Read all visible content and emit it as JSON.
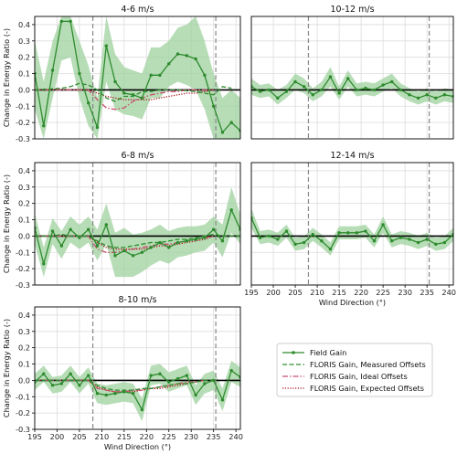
{
  "chart_data": {
    "type": "line",
    "ylabel": "Change in Energy Ratio (-)",
    "xlabel": "Wind Direction (°)",
    "xlim": [
      195,
      241
    ],
    "ylim": [
      -0.3,
      0.45
    ],
    "xticks": [
      "195",
      "200",
      "205",
      "210",
      "215",
      "220",
      "225",
      "230",
      "235",
      "240"
    ],
    "yticks": [
      "0.4",
      "0.3",
      "0.2",
      "0.1",
      "0.0",
      "-0.1",
      "-0.2",
      "-0.3"
    ],
    "vlines": [
      208,
      235.5
    ],
    "legend": {
      "placement": "lower-right",
      "entries": [
        {
          "key": "field",
          "label": "Field Gain"
        },
        {
          "key": "measured",
          "label": "FLORIS Gain, Measured Offsets"
        },
        {
          "key": "ideal",
          "label": "FLORIS Gain, Ideal Offsets"
        },
        {
          "key": "expected",
          "label": "FLORIS Gain, Expected Offsets"
        }
      ]
    },
    "colors": {
      "field": "#2e8b2e",
      "band": "#9fd19f",
      "measured": "#2e8b2e",
      "ideal": "#c8506e",
      "expected": "#a8121e",
      "zero": "#000000",
      "vline": "#888888",
      "grid": "#dddddd"
    },
    "panels": [
      {
        "title": "4-6 m/s",
        "x": [
          195,
          197,
          199,
          201,
          203,
          205,
          207,
          209,
          211,
          213,
          215,
          217,
          219,
          221,
          223,
          225,
          227,
          229,
          231,
          233,
          235,
          237,
          239,
          241
        ],
        "field": [
          0.1,
          -0.22,
          0.12,
          0.42,
          0.42,
          0.1,
          -0.08,
          -0.23,
          0.27,
          0.05,
          -0.02,
          -0.03,
          -0.05,
          0.09,
          0.09,
          0.16,
          0.22,
          0.21,
          0.19,
          0.09,
          -0.1,
          -0.26,
          -0.2,
          -0.25
        ],
        "lower": [
          -0.12,
          -0.3,
          -0.05,
          0.18,
          0.2,
          -0.05,
          -0.22,
          -0.3,
          0.05,
          -0.12,
          -0.15,
          -0.16,
          -0.18,
          -0.05,
          -0.05,
          0.02,
          0.05,
          0.03,
          0.0,
          -0.12,
          -0.3,
          -0.3,
          -0.3,
          -0.3
        ],
        "upper": [
          0.3,
          0.05,
          0.3,
          0.45,
          0.45,
          0.3,
          0.15,
          -0.05,
          0.45,
          0.22,
          0.14,
          0.12,
          0.1,
          0.26,
          0.26,
          0.3,
          0.38,
          0.4,
          0.45,
          0.3,
          0.1,
          -0.05,
          0.0,
          -0.05
        ],
        "measured": [
          [
            195,
            0.0
          ],
          [
            201,
            0.01
          ],
          [
            203,
            0.02
          ],
          [
            205,
            0.04
          ],
          [
            207,
            0.03
          ],
          [
            209,
            0.0
          ],
          [
            211,
            -0.05
          ],
          [
            213,
            -0.07
          ],
          [
            215,
            -0.04
          ],
          [
            217,
            -0.04
          ],
          [
            219,
            -0.01
          ],
          [
            221,
            -0.01
          ],
          [
            223,
            0.0
          ],
          [
            227,
            0.0
          ],
          [
            231,
            -0.01
          ],
          [
            233,
            -0.02
          ],
          [
            235,
            -0.03
          ],
          [
            237,
            0.02
          ],
          [
            239,
            0.01
          ]
        ],
        "ideal": [
          [
            195,
            0.0
          ],
          [
            207,
            0.0
          ],
          [
            209,
            -0.06
          ],
          [
            211,
            -0.11
          ],
          [
            213,
            -0.12
          ],
          [
            215,
            -0.11
          ],
          [
            217,
            -0.07
          ],
          [
            219,
            -0.05
          ],
          [
            221,
            -0.03
          ],
          [
            223,
            -0.02
          ],
          [
            225,
            -0.01
          ],
          [
            227,
            -0.01
          ],
          [
            229,
            0.0
          ],
          [
            235,
            0.0
          ]
        ],
        "expected": [
          [
            195,
            0.0
          ],
          [
            207,
            0.0
          ],
          [
            209,
            -0.02
          ],
          [
            211,
            -0.04
          ],
          [
            213,
            -0.05
          ],
          [
            215,
            -0.06
          ],
          [
            217,
            -0.06
          ],
          [
            219,
            -0.06
          ],
          [
            221,
            -0.06
          ],
          [
            223,
            -0.05
          ],
          [
            225,
            -0.04
          ],
          [
            227,
            -0.03
          ],
          [
            229,
            -0.02
          ],
          [
            231,
            -0.02
          ],
          [
            233,
            -0.01
          ],
          [
            235,
            0.0
          ]
        ]
      },
      {
        "title": "10-12 m/s",
        "x": [
          195,
          197,
          199,
          201,
          203,
          205,
          207,
          209,
          211,
          213,
          215,
          217,
          219,
          221,
          223,
          225,
          227,
          229,
          231,
          233,
          235,
          237,
          239,
          241
        ],
        "field": [
          0.02,
          -0.01,
          0.0,
          -0.05,
          -0.01,
          0.05,
          0.02,
          -0.03,
          0.0,
          0.08,
          -0.02,
          0.07,
          0.0,
          0.01,
          0.0,
          0.03,
          0.05,
          0.0,
          -0.03,
          -0.05,
          -0.03,
          -0.05,
          -0.03,
          -0.04
        ],
        "lower": [
          -0.03,
          -0.05,
          -0.04,
          -0.09,
          -0.05,
          0.0,
          -0.02,
          -0.07,
          -0.04,
          0.02,
          -0.06,
          0.02,
          -0.04,
          -0.03,
          -0.04,
          -0.01,
          0.01,
          -0.04,
          -0.07,
          -0.09,
          -0.07,
          -0.09,
          -0.07,
          -0.08
        ],
        "upper": [
          0.07,
          0.03,
          0.04,
          0.0,
          0.03,
          0.1,
          0.07,
          0.01,
          0.05,
          0.14,
          0.02,
          0.12,
          0.04,
          0.05,
          0.04,
          0.07,
          0.1,
          0.04,
          0.01,
          -0.01,
          0.01,
          -0.01,
          0.01,
          0.0
        ],
        "measured": [],
        "ideal": [],
        "expected": []
      },
      {
        "title": "6-8 m/s",
        "x": [
          195,
          197,
          199,
          201,
          203,
          205,
          207,
          209,
          211,
          213,
          215,
          217,
          219,
          221,
          223,
          225,
          227,
          229,
          231,
          233,
          235,
          237,
          239,
          241
        ],
        "field": [
          0.05,
          -0.17,
          0.03,
          -0.06,
          0.04,
          -0.01,
          0.04,
          -0.06,
          0.07,
          -0.12,
          -0.09,
          -0.12,
          -0.1,
          -0.07,
          -0.04,
          -0.07,
          -0.04,
          -0.03,
          -0.02,
          -0.01,
          0.04,
          -0.03,
          0.16,
          0.04
        ],
        "lower": [
          -0.05,
          -0.25,
          -0.05,
          -0.14,
          -0.04,
          -0.08,
          -0.04,
          -0.15,
          -0.05,
          -0.25,
          -0.25,
          -0.25,
          -0.22,
          -0.18,
          -0.15,
          -0.17,
          -0.13,
          -0.12,
          -0.1,
          -0.09,
          -0.04,
          -0.13,
          0.02,
          -0.05
        ],
        "upper": [
          0.14,
          -0.07,
          0.11,
          0.03,
          0.12,
          0.07,
          0.12,
          0.04,
          0.2,
          0.02,
          0.05,
          0.01,
          0.02,
          0.04,
          0.07,
          0.03,
          0.05,
          0.06,
          0.06,
          0.07,
          0.12,
          0.07,
          0.3,
          0.13
        ],
        "measured": [
          [
            195,
            0.0
          ],
          [
            199,
            0.0
          ],
          [
            201,
            0.01
          ],
          [
            203,
            0.0
          ],
          [
            205,
            0.0
          ],
          [
            207,
            0.0
          ],
          [
            209,
            -0.03
          ],
          [
            211,
            -0.06
          ],
          [
            213,
            -0.07
          ],
          [
            215,
            -0.07
          ],
          [
            217,
            -0.06
          ],
          [
            219,
            -0.05
          ],
          [
            221,
            -0.04
          ],
          [
            223,
            -0.04
          ],
          [
            225,
            -0.03
          ],
          [
            227,
            -0.02
          ],
          [
            229,
            -0.02
          ],
          [
            231,
            -0.01
          ],
          [
            233,
            0.0
          ],
          [
            235,
            0.01
          ],
          [
            237,
            0.0
          ],
          [
            239,
            0.0
          ],
          [
            241,
            0.0
          ]
        ],
        "ideal": [
          [
            195,
            0.0
          ],
          [
            207,
            0.0
          ],
          [
            209,
            -0.08
          ],
          [
            211,
            -0.1
          ],
          [
            213,
            -0.1
          ],
          [
            215,
            -0.09
          ],
          [
            217,
            -0.08
          ],
          [
            219,
            -0.07
          ],
          [
            221,
            -0.06
          ],
          [
            223,
            -0.05
          ],
          [
            225,
            -0.05
          ],
          [
            227,
            -0.04
          ],
          [
            229,
            -0.03
          ],
          [
            231,
            -0.02
          ],
          [
            233,
            -0.01
          ],
          [
            235,
            0.0
          ]
        ],
        "expected": [
          [
            195,
            0.0
          ],
          [
            207,
            0.0
          ],
          [
            209,
            -0.04
          ],
          [
            211,
            -0.07
          ],
          [
            213,
            -0.08
          ],
          [
            215,
            -0.08
          ],
          [
            217,
            -0.08
          ],
          [
            219,
            -0.08
          ],
          [
            221,
            -0.07
          ],
          [
            223,
            -0.06
          ],
          [
            225,
            -0.06
          ],
          [
            227,
            -0.05
          ],
          [
            229,
            -0.04
          ],
          [
            231,
            -0.03
          ],
          [
            233,
            -0.02
          ],
          [
            235,
            0.0
          ]
        ]
      },
      {
        "title": "12-14 m/s",
        "x": [
          195,
          197,
          199,
          201,
          203,
          205,
          207,
          209,
          211,
          213,
          215,
          217,
          219,
          221,
          223,
          225,
          227,
          229,
          231,
          233,
          235,
          237,
          239,
          241
        ],
        "field": [
          0.11,
          -0.01,
          0.0,
          -0.02,
          0.03,
          -0.05,
          -0.04,
          0.01,
          -0.03,
          -0.08,
          0.02,
          0.02,
          0.02,
          0.03,
          -0.03,
          0.07,
          -0.03,
          -0.01,
          -0.02,
          -0.04,
          -0.02,
          -0.05,
          -0.04,
          0.01
        ],
        "lower": [
          0.05,
          -0.05,
          -0.04,
          -0.06,
          -0.01,
          -0.09,
          -0.08,
          -0.03,
          -0.07,
          -0.12,
          -0.02,
          -0.02,
          -0.02,
          -0.01,
          -0.07,
          0.02,
          -0.07,
          -0.05,
          -0.06,
          -0.08,
          -0.06,
          -0.09,
          -0.08,
          -0.03
        ],
        "upper": [
          0.17,
          0.03,
          0.04,
          0.02,
          0.07,
          -0.01,
          0.0,
          0.05,
          0.01,
          -0.04,
          0.06,
          0.06,
          0.06,
          0.07,
          0.01,
          0.12,
          0.01,
          0.03,
          0.02,
          0.0,
          0.02,
          -0.01,
          0.0,
          0.05
        ],
        "measured": [],
        "ideal": [],
        "expected": []
      },
      {
        "title": "8-10 m/s",
        "x": [
          195,
          197,
          199,
          201,
          203,
          205,
          207,
          209,
          211,
          213,
          215,
          217,
          219,
          221,
          223,
          225,
          227,
          229,
          231,
          233,
          235,
          237,
          239,
          241
        ],
        "field": [
          -0.01,
          0.04,
          -0.03,
          -0.02,
          0.04,
          -0.03,
          0.03,
          -0.08,
          -0.09,
          -0.08,
          -0.07,
          -0.08,
          -0.18,
          0.03,
          0.04,
          -0.01,
          0.01,
          0.03,
          -0.09,
          -0.02,
          0.0,
          -0.12,
          0.06,
          0.02
        ],
        "lower": [
          -0.06,
          -0.01,
          -0.08,
          -0.07,
          -0.01,
          -0.08,
          -0.02,
          -0.14,
          -0.15,
          -0.14,
          -0.13,
          -0.14,
          -0.25,
          -0.03,
          -0.02,
          -0.07,
          -0.05,
          -0.03,
          -0.15,
          -0.08,
          -0.06,
          -0.19,
          -0.01,
          -0.04
        ],
        "upper": [
          0.04,
          0.09,
          0.02,
          0.03,
          0.09,
          0.02,
          0.08,
          -0.02,
          -0.03,
          -0.02,
          -0.01,
          -0.02,
          -0.11,
          0.09,
          0.1,
          0.05,
          0.07,
          0.09,
          -0.03,
          0.04,
          0.06,
          -0.05,
          0.12,
          0.08
        ],
        "measured": [
          [
            195,
            0.0
          ],
          [
            207,
            0.0
          ],
          [
            209,
            -0.03
          ],
          [
            211,
            -0.05
          ],
          [
            213,
            -0.06
          ],
          [
            215,
            -0.06
          ],
          [
            217,
            -0.06
          ],
          [
            219,
            -0.05
          ],
          [
            221,
            -0.05
          ],
          [
            223,
            -0.04
          ],
          [
            225,
            -0.03
          ],
          [
            227,
            -0.02
          ],
          [
            229,
            -0.02
          ],
          [
            231,
            -0.01
          ],
          [
            233,
            0.0
          ],
          [
            235,
            0.0
          ]
        ],
        "ideal": [
          [
            195,
            0.0
          ],
          [
            207,
            0.0
          ],
          [
            209,
            -0.05
          ],
          [
            211,
            -0.06
          ],
          [
            213,
            -0.07
          ],
          [
            215,
            -0.07
          ],
          [
            217,
            -0.06
          ],
          [
            219,
            -0.06
          ],
          [
            221,
            -0.05
          ],
          [
            223,
            -0.04
          ],
          [
            225,
            -0.03
          ],
          [
            227,
            -0.02
          ],
          [
            229,
            -0.01
          ],
          [
            231,
            -0.01
          ],
          [
            233,
            0.0
          ]
        ],
        "expected": [
          [
            195,
            0.0
          ],
          [
            207,
            0.0
          ],
          [
            209,
            -0.04
          ],
          [
            211,
            -0.06
          ],
          [
            213,
            -0.07
          ],
          [
            215,
            -0.07
          ],
          [
            217,
            -0.07
          ],
          [
            219,
            -0.06
          ],
          [
            221,
            -0.05
          ],
          [
            223,
            -0.05
          ],
          [
            225,
            -0.04
          ],
          [
            227,
            -0.03
          ],
          [
            229,
            -0.02
          ],
          [
            231,
            -0.01
          ],
          [
            233,
            0.0
          ]
        ]
      }
    ]
  }
}
